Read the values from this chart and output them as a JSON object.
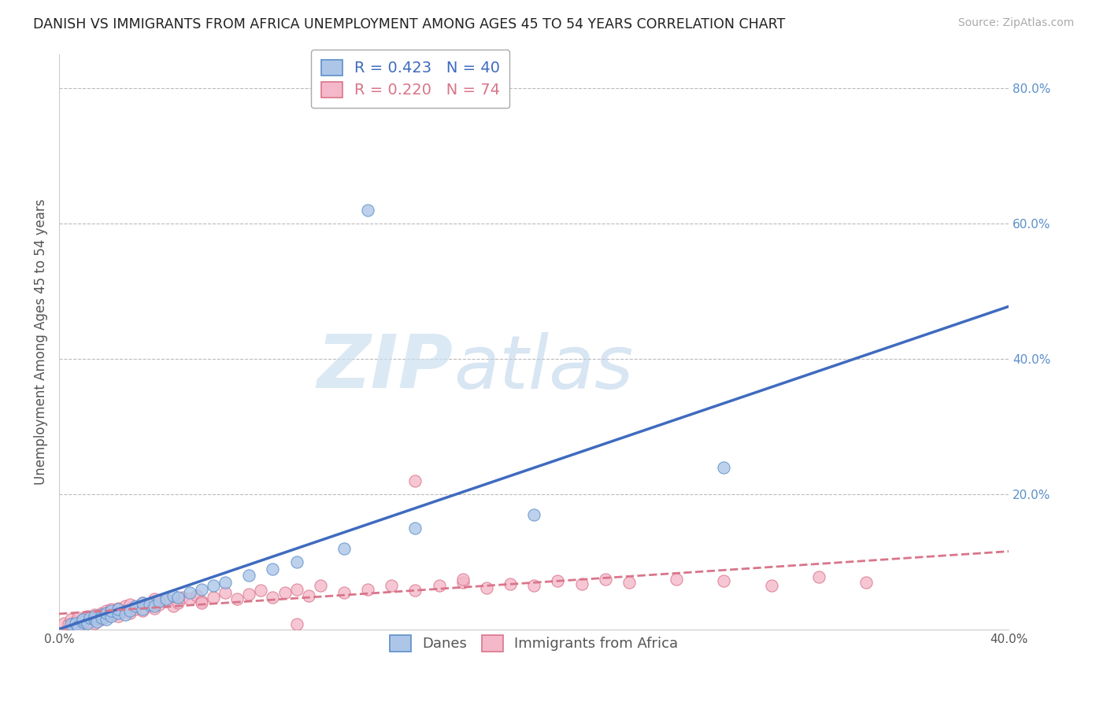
{
  "title": "DANISH VS IMMIGRANTS FROM AFRICA UNEMPLOYMENT AMONG AGES 45 TO 54 YEARS CORRELATION CHART",
  "source": "Source: ZipAtlas.com",
  "ylabel": "Unemployment Among Ages 45 to 54 years",
  "xlabel": "",
  "xlim": [
    0.0,
    0.4
  ],
  "ylim": [
    0.0,
    0.85
  ],
  "xticks": [
    0.0,
    0.1,
    0.2,
    0.3,
    0.4
  ],
  "xticklabels": [
    "0.0%",
    "",
    "",
    "",
    "40.0%"
  ],
  "yticks_left": [],
  "yticks_right": [
    0.2,
    0.4,
    0.6,
    0.8
  ],
  "yticklabels_right": [
    "20.0%",
    "40.0%",
    "60.0%",
    "80.0%"
  ],
  "grid_color": "#bbbbbb",
  "background_color": "#ffffff",
  "watermark_zip": "ZIP",
  "watermark_atlas": "atlas",
  "legend_r1": "R = 0.423",
  "legend_n1": "N = 40",
  "legend_r2": "R = 0.220",
  "legend_n2": "N = 74",
  "danes_color": "#adc6e8",
  "danes_edge_color": "#5b8fc9",
  "danes_line_color": "#3f6bbf",
  "africa_color": "#f4b8ca",
  "africa_edge_color": "#d9758a",
  "africa_line_color": "#d9758a",
  "danes_label": "Danes",
  "africa_label": "Immigrants from Africa",
  "danes_scatter_x": [
    0.005,
    0.007,
    0.008,
    0.01,
    0.01,
    0.012,
    0.013,
    0.015,
    0.015,
    0.016,
    0.018,
    0.018,
    0.02,
    0.02,
    0.022,
    0.022,
    0.025,
    0.025,
    0.028,
    0.03,
    0.032,
    0.035,
    0.035,
    0.038,
    0.04,
    0.042,
    0.045,
    0.048,
    0.05,
    0.055,
    0.06,
    0.065,
    0.07,
    0.08,
    0.09,
    0.1,
    0.12,
    0.15,
    0.2,
    0.28
  ],
  "danes_scatter_y": [
    0.008,
    0.01,
    0.005,
    0.012,
    0.015,
    0.01,
    0.018,
    0.015,
    0.02,
    0.012,
    0.022,
    0.018,
    0.015,
    0.025,
    0.02,
    0.028,
    0.025,
    0.03,
    0.022,
    0.028,
    0.035,
    0.03,
    0.04,
    0.038,
    0.035,
    0.042,
    0.045,
    0.05,
    0.048,
    0.055,
    0.06,
    0.065,
    0.07,
    0.08,
    0.09,
    0.1,
    0.12,
    0.15,
    0.17,
    0.24
  ],
  "danes_outlier_x": [
    0.13
  ],
  "danes_outlier_y": [
    0.62
  ],
  "africa_scatter_x": [
    0.002,
    0.004,
    0.005,
    0.006,
    0.007,
    0.008,
    0.008,
    0.01,
    0.01,
    0.012,
    0.012,
    0.014,
    0.015,
    0.015,
    0.016,
    0.018,
    0.018,
    0.02,
    0.02,
    0.022,
    0.022,
    0.024,
    0.025,
    0.025,
    0.028,
    0.028,
    0.03,
    0.03,
    0.032,
    0.035,
    0.035,
    0.038,
    0.04,
    0.04,
    0.042,
    0.045,
    0.048,
    0.05,
    0.052,
    0.055,
    0.058,
    0.06,
    0.065,
    0.07,
    0.075,
    0.08,
    0.085,
    0.09,
    0.095,
    0.1,
    0.105,
    0.11,
    0.12,
    0.13,
    0.14,
    0.15,
    0.16,
    0.17,
    0.18,
    0.19,
    0.2,
    0.21,
    0.22,
    0.23,
    0.24,
    0.26,
    0.28,
    0.3,
    0.32,
    0.34,
    0.15,
    0.17,
    0.06,
    0.1
  ],
  "africa_scatter_y": [
    0.01,
    0.008,
    0.015,
    0.01,
    0.012,
    0.008,
    0.018,
    0.01,
    0.015,
    0.012,
    0.02,
    0.015,
    0.01,
    0.022,
    0.018,
    0.015,
    0.025,
    0.02,
    0.028,
    0.022,
    0.03,
    0.025,
    0.02,
    0.032,
    0.028,
    0.035,
    0.025,
    0.038,
    0.03,
    0.028,
    0.04,
    0.035,
    0.032,
    0.045,
    0.038,
    0.042,
    0.035,
    0.04,
    0.048,
    0.045,
    0.05,
    0.042,
    0.048,
    0.055,
    0.045,
    0.052,
    0.058,
    0.048,
    0.055,
    0.06,
    0.05,
    0.065,
    0.055,
    0.06,
    0.065,
    0.058,
    0.065,
    0.07,
    0.062,
    0.068,
    0.065,
    0.072,
    0.068,
    0.075,
    0.07,
    0.075,
    0.072,
    0.065,
    0.078,
    0.07,
    0.22,
    0.075,
    0.04,
    0.008
  ]
}
